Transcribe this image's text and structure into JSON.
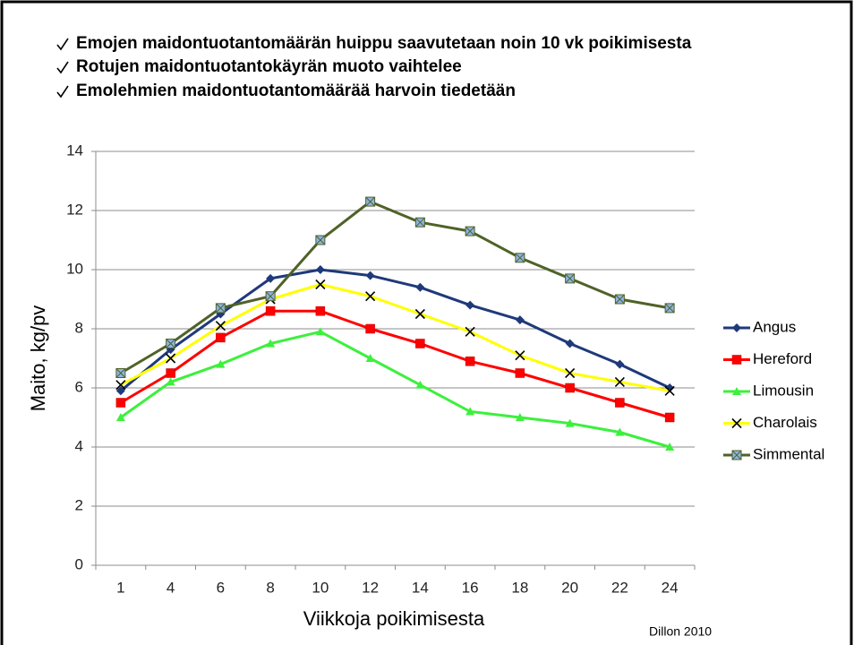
{
  "chart_data": {
    "type": "line",
    "bullets": [
      "Emojen maidontuotantomäärän huippu saavutetaan noin 10 vk poikimisesta",
      "Rotujen maidontuotantokäyrän muoto vaihtelee",
      "Emolehmien maidontuotantomäärää harvoin tiedetään"
    ],
    "x_label": "Viikkoja poikimisesta",
    "y_label": "Maito, kg/pv",
    "source": "Dillon 2010",
    "categories": [
      "1",
      "4",
      "6",
      "8",
      "10",
      "12",
      "14",
      "16",
      "18",
      "20",
      "22",
      "24"
    ],
    "ylim": [
      0,
      14
    ],
    "yticks": [
      0,
      2,
      4,
      6,
      8,
      10,
      12,
      14
    ],
    "grid": true,
    "legend": "right",
    "series": [
      {
        "name": "Angus",
        "color": "#1f3a7a",
        "marker": "diamond",
        "marker_color": "#1f3a7a",
        "values": [
          5.9,
          7.3,
          8.5,
          9.7,
          10.0,
          9.8,
          9.4,
          8.8,
          8.3,
          7.5,
          6.8,
          6.0
        ]
      },
      {
        "name": "Hereford",
        "color": "#ff0000",
        "marker": "square",
        "marker_color": "#ff0000",
        "values": [
          5.5,
          6.5,
          7.7,
          8.6,
          8.6,
          8.0,
          7.5,
          6.9,
          6.5,
          6.0,
          5.5,
          5.0
        ]
      },
      {
        "name": "Limousin",
        "color": "#3cf03c",
        "marker": "triangle",
        "marker_color": "#3cf03c",
        "values": [
          5.0,
          6.2,
          6.8,
          7.5,
          7.9,
          7.0,
          6.1,
          5.2,
          5.0,
          4.8,
          4.5,
          4.0
        ]
      },
      {
        "name": "Charolais",
        "color": "#ffff00",
        "marker": "x",
        "marker_color": "#000000",
        "values": [
          6.1,
          7.0,
          8.1,
          9.0,
          9.5,
          9.1,
          8.5,
          7.9,
          7.1,
          6.5,
          6.2,
          5.9
        ]
      },
      {
        "name": "Simmental",
        "color": "#4f6228",
        "marker": "crosssquare",
        "marker_color": "#8eb4e3",
        "values": [
          6.5,
          7.5,
          8.7,
          9.1,
          11.0,
          12.3,
          11.6,
          11.3,
          10.4,
          9.7,
          9.0,
          8.7
        ]
      }
    ]
  }
}
